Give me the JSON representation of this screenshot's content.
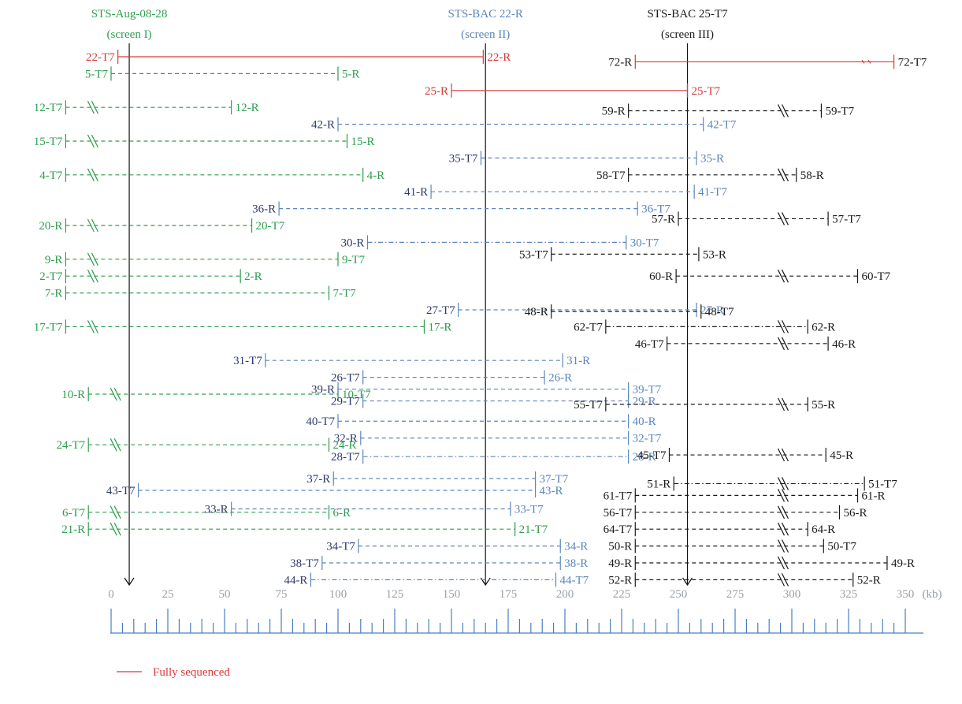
{
  "colors": {
    "green": "#2e9e4f",
    "blue": "#5b86bd",
    "navy": "#2f3a6e",
    "black": "#1a1a1a",
    "red": "#d83a3a",
    "axis": "#9aa0a6",
    "ruler": "#4a7fc1"
  },
  "screens": [
    {
      "name": "STS-Aug-08-28",
      "label": "(screen I)",
      "color": "green",
      "x": 8
    },
    {
      "name": "STS-BAC 22-R",
      "label": "(screen II)",
      "color": "blue",
      "x": 165
    },
    {
      "name": "STS-BAC 25-T7",
      "label": "(screen III)",
      "color": "black",
      "x": 254
    }
  ],
  "axis": {
    "ticks": [
      0,
      25,
      50,
      75,
      100,
      125,
      150,
      175,
      200,
      225,
      250,
      275,
      300,
      325,
      350
    ],
    "unit": "(kb)",
    "min": 0,
    "max": 350
  },
  "legend": {
    "fully_sequenced": "Fully sequenced"
  },
  "clones": [
    {
      "row": 0,
      "left": "22-T7",
      "right": "22-R",
      "x1": 3,
      "x2": 164,
      "color": "red",
      "style": "solid"
    },
    {
      "row": 1,
      "left": "5-T7",
      "right": "5-R",
      "x1": 0,
      "x2": 100,
      "color": "green",
      "style": "dash"
    },
    {
      "row": 3,
      "left": "12-T7",
      "right": "12-R",
      "x1": -20,
      "x2": 53,
      "color": "green",
      "style": "dash",
      "break": true
    },
    {
      "row": 5,
      "left": "15-T7",
      "right": "15-R",
      "x1": -20,
      "x2": 104,
      "color": "green",
      "style": "dash",
      "break": true
    },
    {
      "row": 7,
      "left": "4-T7",
      "right": "4-R",
      "x1": -20,
      "x2": 111,
      "color": "green",
      "style": "dash",
      "break": true
    },
    {
      "row": 10,
      "left": "20-R",
      "right": "20-T7",
      "x1": -20,
      "x2": 62,
      "color": "green",
      "style": "dash",
      "break": true
    },
    {
      "row": 12,
      "left": "9-R",
      "right": "9-T7",
      "x1": -20,
      "x2": 100,
      "color": "green",
      "style": "dash",
      "break": true
    },
    {
      "row": 13,
      "left": "2-T7",
      "right": "2-R",
      "x1": -20,
      "x2": 57,
      "color": "green",
      "style": "dash",
      "break": true
    },
    {
      "row": 14,
      "left": "7-R",
      "right": "7-T7",
      "x1": -20,
      "x2": 96,
      "color": "green",
      "style": "dash"
    },
    {
      "row": 16,
      "left": "17-T7",
      "right": "17-R",
      "x1": -20,
      "x2": 138,
      "color": "green",
      "style": "dash",
      "break": true
    },
    {
      "row": 20,
      "left": "10-R",
      "right": "10-T7",
      "x1": -10,
      "x2": 100,
      "color": "green",
      "style": "dash",
      "break": true
    },
    {
      "row": 23,
      "left": "24-T7",
      "right": "24-R",
      "x1": -10,
      "x2": 96,
      "color": "green",
      "style": "dash",
      "break": true
    },
    {
      "row": 27,
      "left": "6-T7",
      "right": "6-R",
      "x1": -10,
      "x2": 96,
      "color": "green",
      "style": "dash",
      "break": true
    },
    {
      "row": 28,
      "left": "21-R",
      "right": "21-T7",
      "x1": -10,
      "x2": 178,
      "color": "green",
      "style": "dash",
      "break": true
    },
    {
      "row": 2,
      "left": "25-R",
      "right": "25-T7",
      "x1": 150,
      "x2": 254,
      "color": "red",
      "style": "solid"
    },
    {
      "row": 4,
      "left": "42-R",
      "right": "42-T7",
      "x1": 100,
      "x2": 261,
      "color": "blue",
      "style": "dash",
      "lt": "navy"
    },
    {
      "row": 6,
      "left": "35-T7",
      "right": "35-R",
      "x1": 163,
      "x2": 258,
      "color": "blue",
      "style": "dash",
      "lt": "navy"
    },
    {
      "row": 8,
      "left": "41-R",
      "right": "41-T7",
      "x1": 141,
      "x2": 257,
      "color": "blue",
      "style": "dash",
      "lt": "navy"
    },
    {
      "row": 9,
      "left": "36-R",
      "right": "36-T7",
      "x1": 74,
      "x2": 232,
      "color": "blue",
      "style": "dash",
      "lt": "navy"
    },
    {
      "row": 11,
      "left": "30-R",
      "right": "30-T7",
      "x1": 113,
      "x2": 227,
      "color": "blue",
      "style": "dashdot",
      "lt": "navy"
    },
    {
      "row": 15,
      "left": "27-T7",
      "right": "27-R",
      "x1": 153,
      "x2": 258,
      "color": "blue",
      "style": "dash",
      "lt": "navy"
    },
    {
      "row": 18,
      "left": "31-T7",
      "right": "31-R",
      "x1": 68,
      "x2": 199,
      "color": "blue",
      "style": "dash",
      "lt": "navy"
    },
    {
      "row": 19,
      "left": "26-T7",
      "right": "26-R",
      "x1": 111,
      "x2": 191,
      "color": "blue",
      "style": "dash",
      "lt": "navy"
    },
    {
      "row": 19.7,
      "left": "39-R",
      "right": "39-T7",
      "x1": 100,
      "x2": 228,
      "color": "blue",
      "style": "dash",
      "lt": "navy"
    },
    {
      "row": 20.4,
      "left": "29-T7",
      "right": "29-R",
      "x1": 111,
      "x2": 228,
      "color": "blue",
      "style": "dash",
      "lt": "navy"
    },
    {
      "row": 21.6,
      "left": "40-T7",
      "right": "40-R",
      "x1": 100,
      "x2": 228,
      "color": "blue",
      "style": "dash",
      "lt": "navy"
    },
    {
      "row": 22.6,
      "left": "32-R",
      "right": "32-T7",
      "x1": 110,
      "x2": 228,
      "color": "blue",
      "style": "dash",
      "lt": "navy"
    },
    {
      "row": 23.7,
      "left": "28-T7",
      "right": "28-R",
      "x1": 111,
      "x2": 228,
      "color": "blue",
      "style": "dashdot",
      "lt": "navy"
    },
    {
      "row": 25,
      "left": "37-R",
      "right": "37-T7",
      "x1": 98,
      "x2": 187,
      "color": "blue",
      "style": "dash",
      "lt": "navy"
    },
    {
      "row": 25.7,
      "left": "43-T7",
      "right": "43-R",
      "x1": 12,
      "x2": 187,
      "color": "blue",
      "style": "dash",
      "lt": "navy"
    },
    {
      "row": 26.8,
      "left": "33-R",
      "right": "33-T7",
      "x1": 53,
      "x2": 176,
      "color": "blue",
      "style": "dash",
      "lt": "navy"
    },
    {
      "row": 29,
      "left": "34-T7",
      "right": "34-R",
      "x1": 109,
      "x2": 198,
      "color": "blue",
      "style": "dash",
      "lt": "navy"
    },
    {
      "row": 30,
      "left": "38-T7",
      "right": "38-R",
      "x1": 93,
      "x2": 198,
      "color": "blue",
      "style": "dash",
      "lt": "navy"
    },
    {
      "row": 31,
      "left": "44-R",
      "right": "44-T7",
      "x1": 88,
      "x2": 196,
      "color": "blue",
      "style": "dashdot",
      "lt": "navy"
    },
    {
      "row": 0.3,
      "left": "72-R",
      "right": "72-T7",
      "x1": 231,
      "x2": 345,
      "color": "red",
      "style": "solid",
      "lt": "black",
      "rt": "black",
      "cut": true
    },
    {
      "row": 3.2,
      "left": "59-R",
      "right": "59-T7",
      "x1": 228,
      "x2": 313,
      "color": "black",
      "style": "dash",
      "break": true
    },
    {
      "row": 7,
      "left": "58-T7",
      "right": "58-R",
      "x1": 228,
      "x2": 302,
      "color": "black",
      "style": "dash",
      "break": true
    },
    {
      "row": 9.6,
      "left": "57-R",
      "right": "57-T7",
      "x1": 250,
      "x2": 316,
      "color": "black",
      "style": "dash",
      "break": true
    },
    {
      "row": 11.7,
      "left": "53-T7",
      "right": "53-R",
      "x1": 194,
      "x2": 259,
      "color": "black",
      "style": "dash"
    },
    {
      "row": 13,
      "left": "60-R",
      "right": "60-T7",
      "x1": 249,
      "x2": 329,
      "color": "black",
      "style": "dash",
      "break": true
    },
    {
      "row": 15.1,
      "left": "48-R",
      "right": "48-T7",
      "x1": 194,
      "x2": 260,
      "color": "black",
      "style": "dash"
    },
    {
      "row": 16,
      "left": "62-T7",
      "right": "62-R",
      "x1": 218,
      "x2": 307,
      "color": "black",
      "style": "dashdot",
      "break": true
    },
    {
      "row": 17,
      "left": "46-T7",
      "right": "46-R",
      "x1": 245,
      "x2": 316,
      "color": "black",
      "style": "dash",
      "break": true
    },
    {
      "row": 20.6,
      "left": "55-T7",
      "right": "55-R",
      "x1": 218,
      "x2": 307,
      "color": "black",
      "style": "dash",
      "break": true
    },
    {
      "row": 23.6,
      "left": "45-T7",
      "right": "45-R",
      "x1": 246,
      "x2": 315,
      "color": "black",
      "style": "dash",
      "break": true
    },
    {
      "row": 25.3,
      "left": "51-R",
      "right": "51-T7",
      "x1": 248,
      "x2": 332,
      "color": "black",
      "style": "dashdot",
      "break": true
    },
    {
      "row": 26,
      "left": "61-T7",
      "right": "61-R",
      "x1": 231,
      "x2": 329,
      "color": "black",
      "style": "dash",
      "break": true
    },
    {
      "row": 27,
      "left": "56-T7",
      "right": "56-R",
      "x1": 231,
      "x2": 321,
      "color": "black",
      "style": "dash",
      "break": true
    },
    {
      "row": 28,
      "left": "64-T7",
      "right": "64-R",
      "x1": 231,
      "x2": 307,
      "color": "black",
      "style": "dash",
      "break": true
    },
    {
      "row": 29,
      "left": "50-R",
      "right": "50-T7",
      "x1": 231,
      "x2": 314,
      "color": "black",
      "style": "dash",
      "break": true
    },
    {
      "row": 30,
      "left": "49-R",
      "right": "49-R",
      "x1": 231,
      "x2": 342,
      "color": "black",
      "style": "dash",
      "break": true
    },
    {
      "row": 31,
      "left": "52-R",
      "right": "52-R",
      "x1": 231,
      "x2": 327,
      "color": "black",
      "style": "dash",
      "break": true
    }
  ]
}
